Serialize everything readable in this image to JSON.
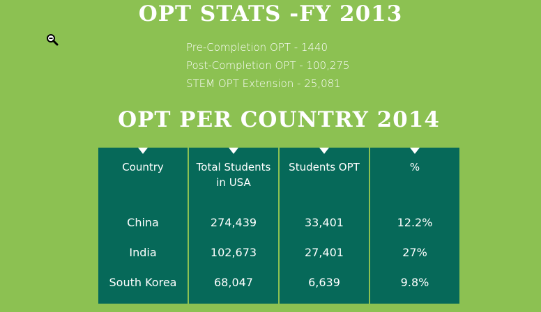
{
  "title_main": "OPT STATS -FY 2013",
  "stats": [
    "Pre-Completion OPT - 1440",
    "Post-Completion OPT - 100,275",
    "STEM OPT Extension - 25,081"
  ],
  "title_country": "OPT PER COUNTRY 2014",
  "table": {
    "headers": [
      "Country",
      "Total Students in USA",
      "Students OPT",
      "%"
    ],
    "rows": [
      [
        "China",
        "274,439",
        "33,401",
        "12.2%"
      ],
      [
        "India",
        "102,673",
        "27,401",
        "27%"
      ],
      [
        "South Korea",
        "68,047",
        "6,639",
        "9.8%"
      ]
    ]
  },
  "icons": {
    "zoom": "zoom-out-icon"
  },
  "colors": {
    "background": "#8cc152",
    "table": "#066959",
    "text": "#ffffff"
  }
}
